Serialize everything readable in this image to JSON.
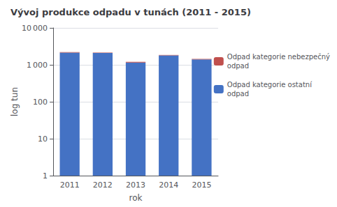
{
  "chart_data": {
    "type": "bar",
    "stacked": true,
    "log": "y",
    "title": "Vývoj produkce odpadu v tunách (2011 - 2015)",
    "xlabel": "rok",
    "ylabel": "log tun",
    "categories": [
      "2011",
      "2012",
      "2013",
      "2014",
      "2015"
    ],
    "series": [
      {
        "name": "Odpad kategorie ostatní\nodpad",
        "color": "#4472C4",
        "values": [
          2150,
          2100,
          1150,
          1800,
          1400
        ]
      },
      {
        "name": "Odpad kategorie nebezpečný\nodpad",
        "color": "#C0504D",
        "values": [
          55,
          50,
          55,
          50,
          45
        ]
      }
    ],
    "ylim": [
      1,
      10000
    ],
    "yticks": [
      1,
      10,
      100,
      {
        "value": 1000,
        "label": "1 000"
      },
      {
        "value": 10000,
        "label": "10 000"
      }
    ],
    "grid": true,
    "legend": "right"
  }
}
